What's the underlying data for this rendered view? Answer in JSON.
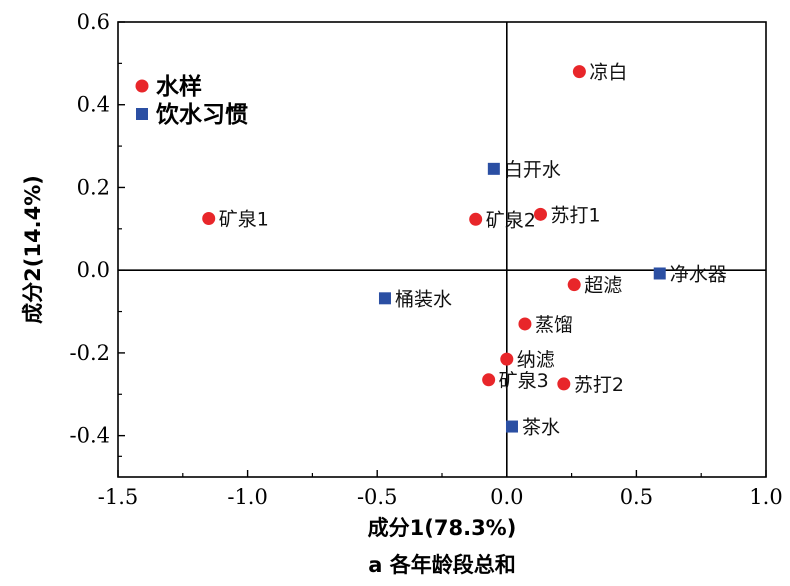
{
  "chart_data": {
    "type": "scatter",
    "title": "",
    "xlabel": "成分1(78.3%)",
    "ylabel": "成分2(14.4%)",
    "caption": "a 各年龄段总和",
    "xlim": [
      -1.5,
      1.0
    ],
    "ylim": [
      -0.5,
      0.6
    ],
    "xticks": [
      -1.5,
      -1.0,
      -0.5,
      0.0,
      0.5,
      1.0
    ],
    "xtick_labels": [
      "-1.5",
      "-1.0",
      "-0.5",
      "0.0",
      "0.5",
      "1.0"
    ],
    "yticks": [
      -0.4,
      -0.2,
      0.0,
      0.2,
      0.4,
      0.6
    ],
    "ytick_labels": [
      "-0.4",
      "-0.2",
      "0.0",
      "0.2",
      "0.4",
      "0.6"
    ],
    "grid": false,
    "reference_lines": {
      "x": 0,
      "y": 0
    },
    "legend_position": "top-left",
    "series": [
      {
        "name": "水样",
        "marker": "circle",
        "color": "#e8262a",
        "points": [
          {
            "label": "凉白",
            "x": 0.28,
            "y": 0.48
          },
          {
            "label": "矿泉1",
            "x": -1.15,
            "y": 0.125
          },
          {
            "label": "矿泉2",
            "x": -0.12,
            "y": 0.123
          },
          {
            "label": "苏打1",
            "x": 0.13,
            "y": 0.135
          },
          {
            "label": "超滤",
            "x": 0.26,
            "y": -0.035
          },
          {
            "label": "蒸馏",
            "x": 0.07,
            "y": -0.13
          },
          {
            "label": "纳滤",
            "x": 0.0,
            "y": -0.215
          },
          {
            "label": "矿泉3",
            "x": -0.07,
            "y": -0.265
          },
          {
            "label": "苏打2",
            "x": 0.22,
            "y": -0.275
          }
        ]
      },
      {
        "name": "饮水习惯",
        "marker": "square",
        "color": "#2b4fa3",
        "points": [
          {
            "label": "白开水",
            "x": -0.05,
            "y": 0.245
          },
          {
            "label": "净水器",
            "x": 0.59,
            "y": -0.008
          },
          {
            "label": "桶装水",
            "x": -0.47,
            "y": -0.068
          },
          {
            "label": "茶水",
            "x": 0.02,
            "y": -0.378
          }
        ]
      }
    ]
  }
}
